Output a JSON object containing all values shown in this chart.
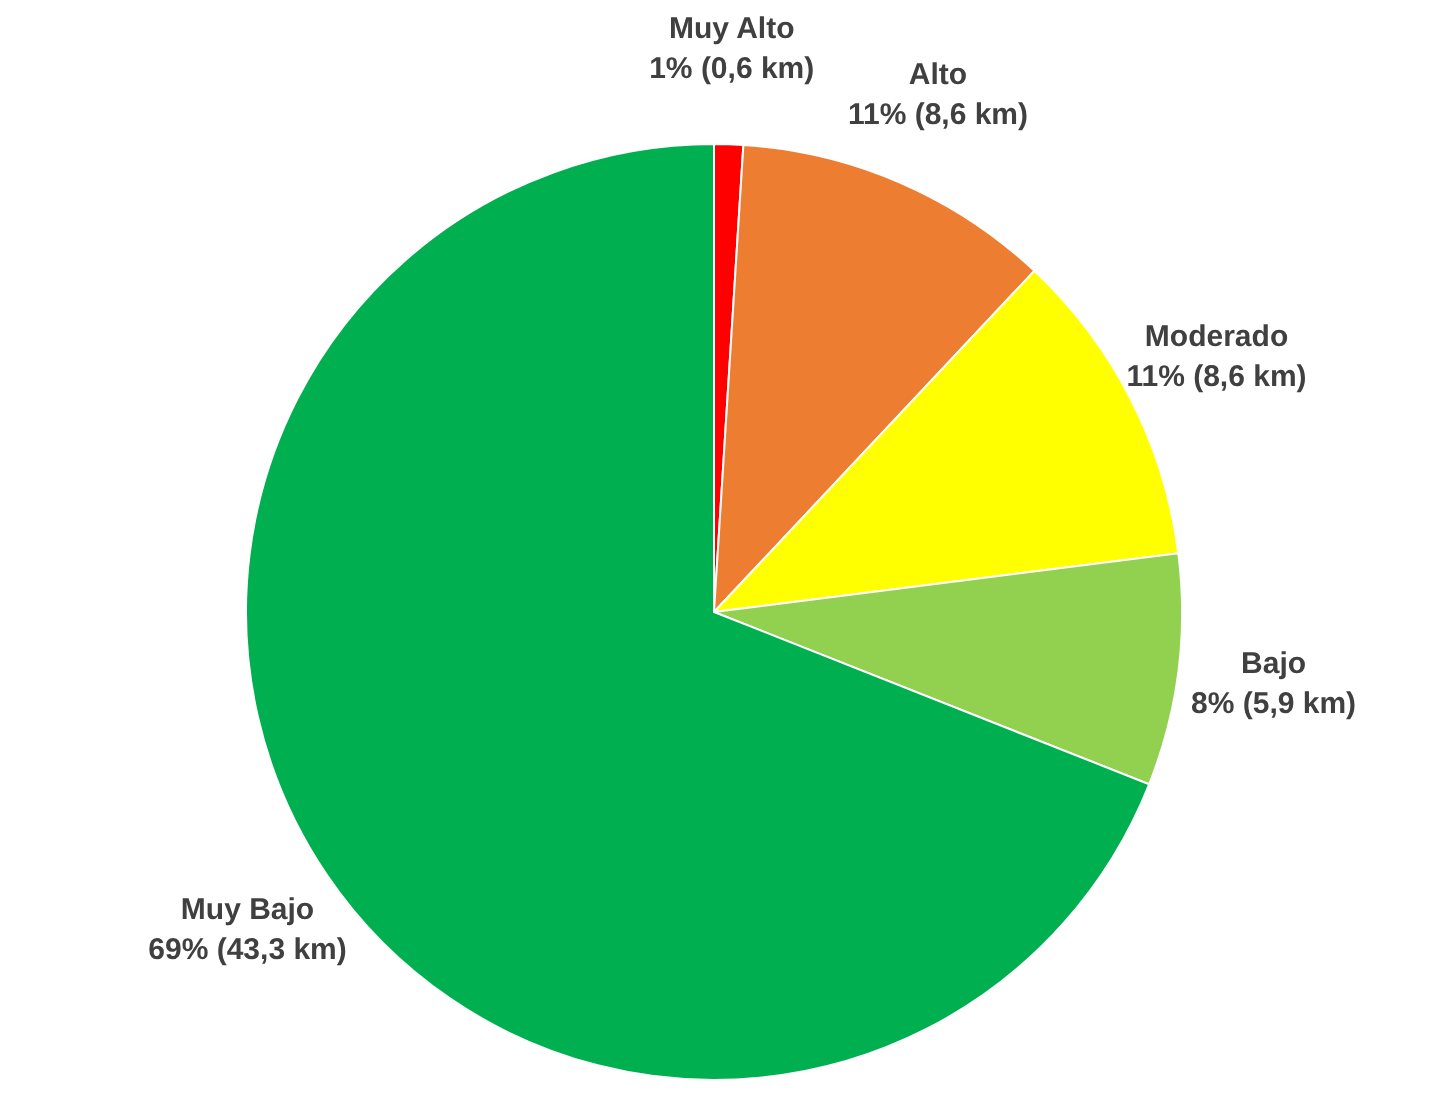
{
  "chart_data": {
    "type": "pie",
    "categories": [
      "Muy Alto",
      "Alto",
      "Moderado",
      "Bajo",
      "Muy Bajo"
    ],
    "values": [
      1,
      11,
      11,
      8,
      69
    ],
    "value_labels": [
      "1% (0,6 km)",
      "11% (8,6 km)",
      "11% (8,6 km)",
      "8% (5,9 km)",
      "69% (43,3 km)"
    ],
    "colors": [
      "#ff0000",
      "#ed7d31",
      "#ffff00",
      "#92d050",
      "#00b050"
    ]
  }
}
